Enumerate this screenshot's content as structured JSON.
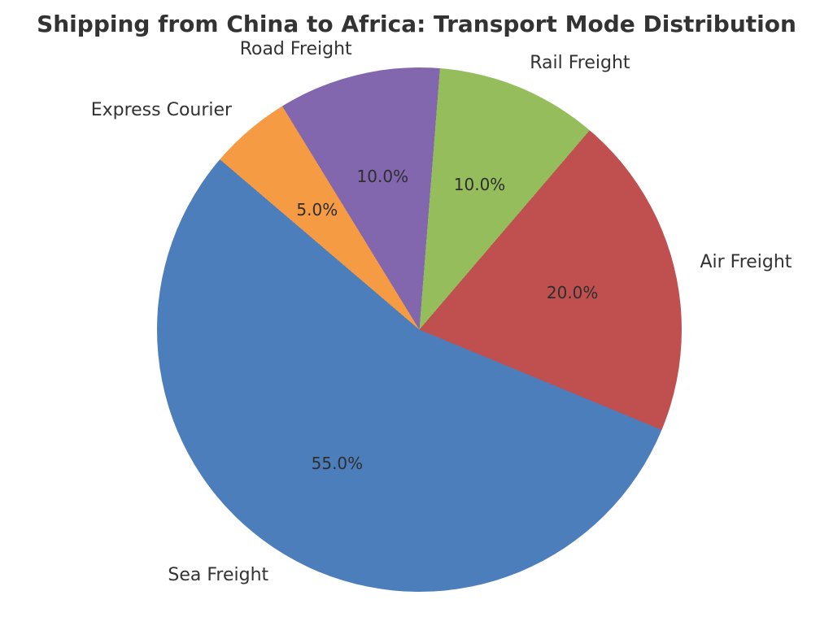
{
  "title": "Shipping from China to Africa: Transport Mode Distribution",
  "chart_data": {
    "type": "pie",
    "title": "Shipping from China to Africa: Transport Mode Distribution",
    "slices": [
      {
        "label": "Sea Freight",
        "value": 55.0,
        "pct_label": "55.0%",
        "color": "#4D7EBC"
      },
      {
        "label": "Air Freight",
        "value": 20.0,
        "pct_label": "20.0%",
        "color": "#C04F4F"
      },
      {
        "label": "Rail Freight",
        "value": 10.0,
        "pct_label": "10.0%",
        "color": "#95BD5C"
      },
      {
        "label": "Road Freight",
        "value": 10.0,
        "pct_label": "10.0%",
        "color": "#8266AE"
      },
      {
        "label": "Express Courier",
        "value": 5.0,
        "pct_label": "5.0%",
        "color": "#F59B44"
      }
    ],
    "start_angle_deg": 139.5,
    "direction": "counterclockwise",
    "label_distance": 1.1,
    "pct_distance": 0.6,
    "legend": "none",
    "text_color": "#333333"
  }
}
